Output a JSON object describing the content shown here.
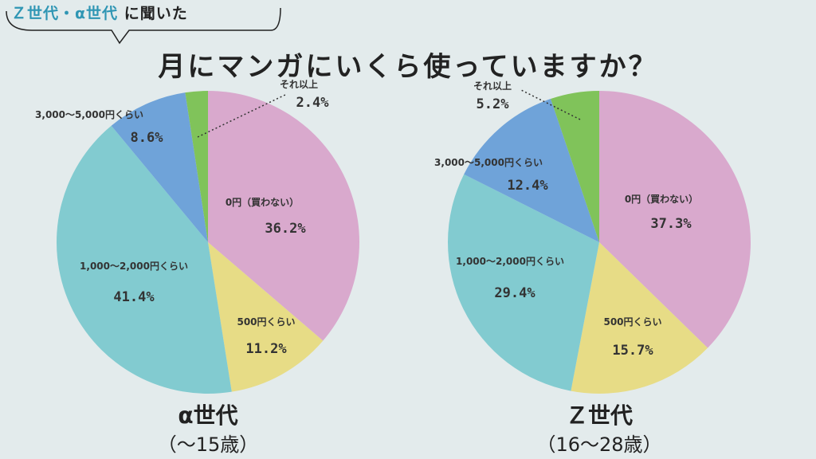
{
  "header": {
    "tag_accent": "Ｚ世代・α世代",
    "tag_plain": "に聞いた",
    "title": "月にマンガにいくら使っていますか？"
  },
  "colors": {
    "pink": "#d9a9cd",
    "yellow": "#e7dc86",
    "teal": "#82cbd0",
    "blue": "#6fa3d9",
    "green": "#80c35a",
    "accent": "#2f96b4"
  },
  "chart_data": [
    {
      "type": "pie",
      "title": "α世代",
      "subtitle": "（〜15歳）",
      "categories": [
        "0円（買わない）",
        "500円くらい",
        "1,000〜2,000円くらい",
        "3,000〜5,000円くらい",
        "それ以上"
      ],
      "values": [
        36.2,
        11.2,
        41.4,
        8.6,
        2.4
      ],
      "value_labels": [
        "36.2%",
        "11.2%",
        "41.4%",
        "8.6%",
        "2.4%"
      ],
      "colors": [
        "#d9a9cd",
        "#e7dc86",
        "#82cbd0",
        "#6fa3d9",
        "#80c35a"
      ],
      "start": "12 o'clock",
      "direction": "clockwise"
    },
    {
      "type": "pie",
      "title": "Ｚ世代",
      "subtitle": "（16〜28歳）",
      "categories": [
        "0円（買わない）",
        "500円くらい",
        "1,000〜2,000円くらい",
        "3,000〜5,000円くらい",
        "それ以上"
      ],
      "values": [
        37.3,
        15.7,
        29.4,
        12.4,
        5.2
      ],
      "value_labels": [
        "37.3%",
        "15.7%",
        "29.4%",
        "12.4%",
        "5.2%"
      ],
      "colors": [
        "#d9a9cd",
        "#e7dc86",
        "#82cbd0",
        "#6fa3d9",
        "#80c35a"
      ],
      "start": "12 o'clock",
      "direction": "clockwise"
    }
  ]
}
